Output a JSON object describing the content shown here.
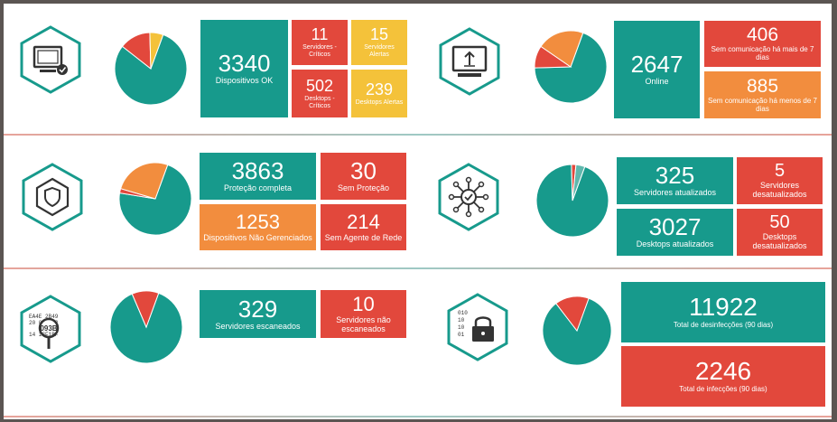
{
  "colors": {
    "teal": "#179a8c",
    "red": "#e2483c",
    "orange": "#f28d3e",
    "yellow": "#f4c23a"
  },
  "sections": [
    {
      "id": "dispositivos",
      "icon": "monitor-check-icon",
      "tiles": [
        {
          "value": "3340",
          "label": "Dispositivos OK",
          "color": "teal"
        },
        {
          "value": "11",
          "label": "Servidores - Críticos",
          "color": "red"
        },
        {
          "value": "15",
          "label": "Servidores Alertas",
          "color": "yellow"
        },
        {
          "value": "502",
          "label": "Desktops - Críticos",
          "color": "red"
        },
        {
          "value": "239",
          "label": "Desktops Alertas",
          "color": "yellow"
        }
      ]
    },
    {
      "id": "comunicacao",
      "icon": "monitor-upload-icon",
      "tiles": [
        {
          "value": "2647",
          "label": "Online",
          "color": "teal"
        },
        {
          "value": "406",
          "label": "Sem comunicação há mais de 7 dias",
          "color": "red"
        },
        {
          "value": "885",
          "label": "Sem comunicação há menos de 7 dias",
          "color": "orange"
        }
      ]
    },
    {
      "id": "protecao",
      "icon": "shield-cube-icon",
      "tiles": [
        {
          "value": "3863",
          "label": "Proteção completa",
          "color": "teal"
        },
        {
          "value": "30",
          "label": "Sem Proteção",
          "color": "red"
        },
        {
          "value": "1253",
          "label": "Dispositivos Não Gerenciados",
          "color": "orange"
        },
        {
          "value": "214",
          "label": "Sem Agente de Rede",
          "color": "red"
        }
      ]
    },
    {
      "id": "atualizacao",
      "icon": "network-check-icon",
      "tiles": [
        {
          "value": "325",
          "label": "Servidores atualizados",
          "color": "teal"
        },
        {
          "value": "5",
          "label": "Servidores desatualizados",
          "color": "red"
        },
        {
          "value": "3027",
          "label": "Desktops atualizados",
          "color": "teal"
        },
        {
          "value": "50",
          "label": "Desktops desatualizados",
          "color": "red"
        }
      ]
    },
    {
      "id": "escaneamento",
      "icon": "magnifier-scan-icon",
      "icon_text": [
        "EA4E 2B49",
        "20 0 4E 2",
        "093B",
        "14 13F1BF"
      ],
      "tiles": [
        {
          "value": "329",
          "label": "Servidores escaneados",
          "color": "teal"
        },
        {
          "value": "10",
          "label": "Servidores não escaneados",
          "color": "red"
        }
      ]
    },
    {
      "id": "infeccoes",
      "icon": "binary-lock-icon",
      "icon_text": [
        "010",
        "10",
        "10",
        "01"
      ],
      "tiles": [
        {
          "value": "11922",
          "label": "Total de desinfecções (90 dias)",
          "color": "teal"
        },
        {
          "value": "2246",
          "label": "Total de infecções (90 dias)",
          "color": "red"
        }
      ]
    }
  ],
  "pies": [
    {
      "slices": [
        {
          "value": 0.8,
          "color": "teal"
        },
        {
          "value": 0.14,
          "color": "red"
        },
        {
          "value": 0.06,
          "color": "yellow"
        }
      ]
    },
    {
      "slices": [
        {
          "value": 0.69,
          "color": "teal"
        },
        {
          "value": 0.1,
          "color": "red"
        },
        {
          "value": 0.21,
          "color": "orange"
        }
      ]
    },
    {
      "slices": [
        {
          "value": 0.72,
          "color": "teal"
        },
        {
          "value": 0.02,
          "color": "red"
        },
        {
          "value": 0.26,
          "color": "orange"
        }
      ]
    },
    {
      "slices": [
        {
          "value": 0.94,
          "color": "teal"
        },
        {
          "value": 0.02,
          "color": "red"
        },
        {
          "value": 0.04,
          "color": "teal_light"
        }
      ]
    },
    {
      "slices": [
        {
          "value": 0.88,
          "color": "teal"
        },
        {
          "value": 0.12,
          "color": "red"
        }
      ]
    },
    {
      "slices": [
        {
          "value": 0.84,
          "color": "teal"
        },
        {
          "value": 0.16,
          "color": "red"
        }
      ]
    }
  ]
}
